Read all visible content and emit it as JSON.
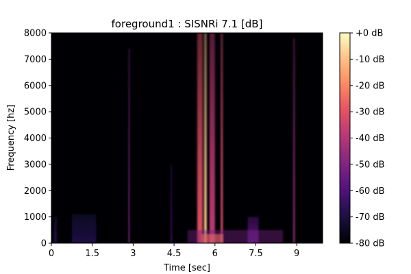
{
  "chart_data": {
    "type": "heatmap",
    "title": "foreground1 : SISNRi 7.1 [dB]",
    "xlabel": "Time [sec]",
    "ylabel": "Frequency [hz]",
    "xlim": [
      0,
      9.95
    ],
    "ylim": [
      0,
      8000
    ],
    "x_ticks": [
      {
        "value": 0,
        "label": "0"
      },
      {
        "value": 1.5,
        "label": "1.5"
      },
      {
        "value": 3,
        "label": "3"
      },
      {
        "value": 4.5,
        "label": "4.5"
      },
      {
        "value": 6,
        "label": "6"
      },
      {
        "value": 7.5,
        "label": "7.5"
      },
      {
        "value": 9,
        "label": "9"
      }
    ],
    "y_ticks": [
      {
        "value": 0,
        "label": "0"
      },
      {
        "value": 1000,
        "label": "1000"
      },
      {
        "value": 2000,
        "label": "2000"
      },
      {
        "value": 3000,
        "label": "3000"
      },
      {
        "value": 4000,
        "label": "4000"
      },
      {
        "value": 5000,
        "label": "5000"
      },
      {
        "value": 6000,
        "label": "6000"
      },
      {
        "value": 7000,
        "label": "7000"
      },
      {
        "value": 8000,
        "label": "8000"
      }
    ],
    "colorbar": {
      "colormap": "magma",
      "range_db": [
        -80,
        0
      ],
      "ticks": [
        {
          "value": 0,
          "label": "+0 dB"
        },
        {
          "value": -10,
          "label": "-10 dB"
        },
        {
          "value": -20,
          "label": "-20 dB"
        },
        {
          "value": -30,
          "label": "-30 dB"
        },
        {
          "value": -40,
          "label": "-40 dB"
        },
        {
          "value": -50,
          "label": "-50 dB"
        },
        {
          "value": -60,
          "label": "-60 dB"
        },
        {
          "value": -70,
          "label": "-70 dB"
        },
        {
          "value": -80,
          "label": "-80 dB"
        }
      ]
    },
    "events": [
      {
        "t": 0.15,
        "width": 0.1,
        "fmax": 1000,
        "level_db": -68
      },
      {
        "t": 1.2,
        "width": 0.9,
        "fmax": 1100,
        "level_db": -70
      },
      {
        "t": 2.85,
        "width": 0.05,
        "fmax": 7400,
        "level_db": -50
      },
      {
        "t": 4.4,
        "width": 0.05,
        "fmax": 3000,
        "level_db": -62
      },
      {
        "t": 5.45,
        "width": 0.2,
        "fmax": 8000,
        "level_db": -30
      },
      {
        "t": 5.65,
        "width": 0.1,
        "fmax": 8000,
        "level_db": -8
      },
      {
        "t": 5.9,
        "width": 0.2,
        "fmax": 8000,
        "level_db": -38
      },
      {
        "t": 6.25,
        "width": 0.08,
        "fmax": 8000,
        "level_db": -32
      },
      {
        "t": 7.4,
        "width": 0.4,
        "fmax": 1000,
        "level_db": -58
      },
      {
        "t": 8.9,
        "width": 0.06,
        "fmax": 7800,
        "level_db": -45
      }
    ],
    "colors": {
      "background": "#000004",
      "low": "#3b0f70",
      "mid": "#b73779",
      "high": "#fcfdbf"
    }
  }
}
